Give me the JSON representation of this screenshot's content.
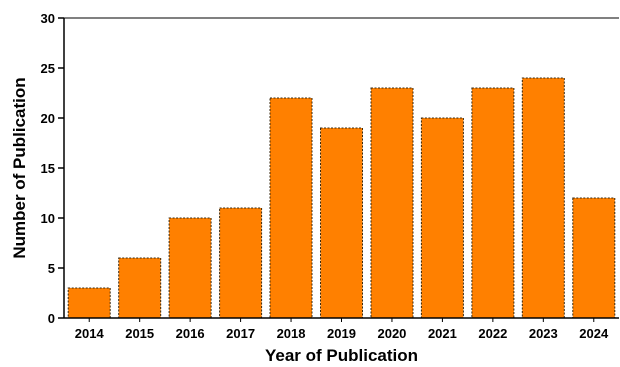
{
  "chart_data": {
    "type": "bar",
    "categories": [
      "2014",
      "2015",
      "2016",
      "2017",
      "2018",
      "2019",
      "2020",
      "2021",
      "2022",
      "2023",
      "2024"
    ],
    "values": [
      3,
      6,
      10,
      11,
      22,
      19,
      23,
      20,
      23,
      24,
      12
    ],
    "xlabel": "Year of Publication",
    "ylabel": "Number of Publication",
    "ylim": [
      0,
      30
    ],
    "yticks": [
      0,
      5,
      10,
      15,
      20,
      25,
      30
    ],
    "bar_color": "#ff8000",
    "grid": false,
    "legend": "none"
  }
}
